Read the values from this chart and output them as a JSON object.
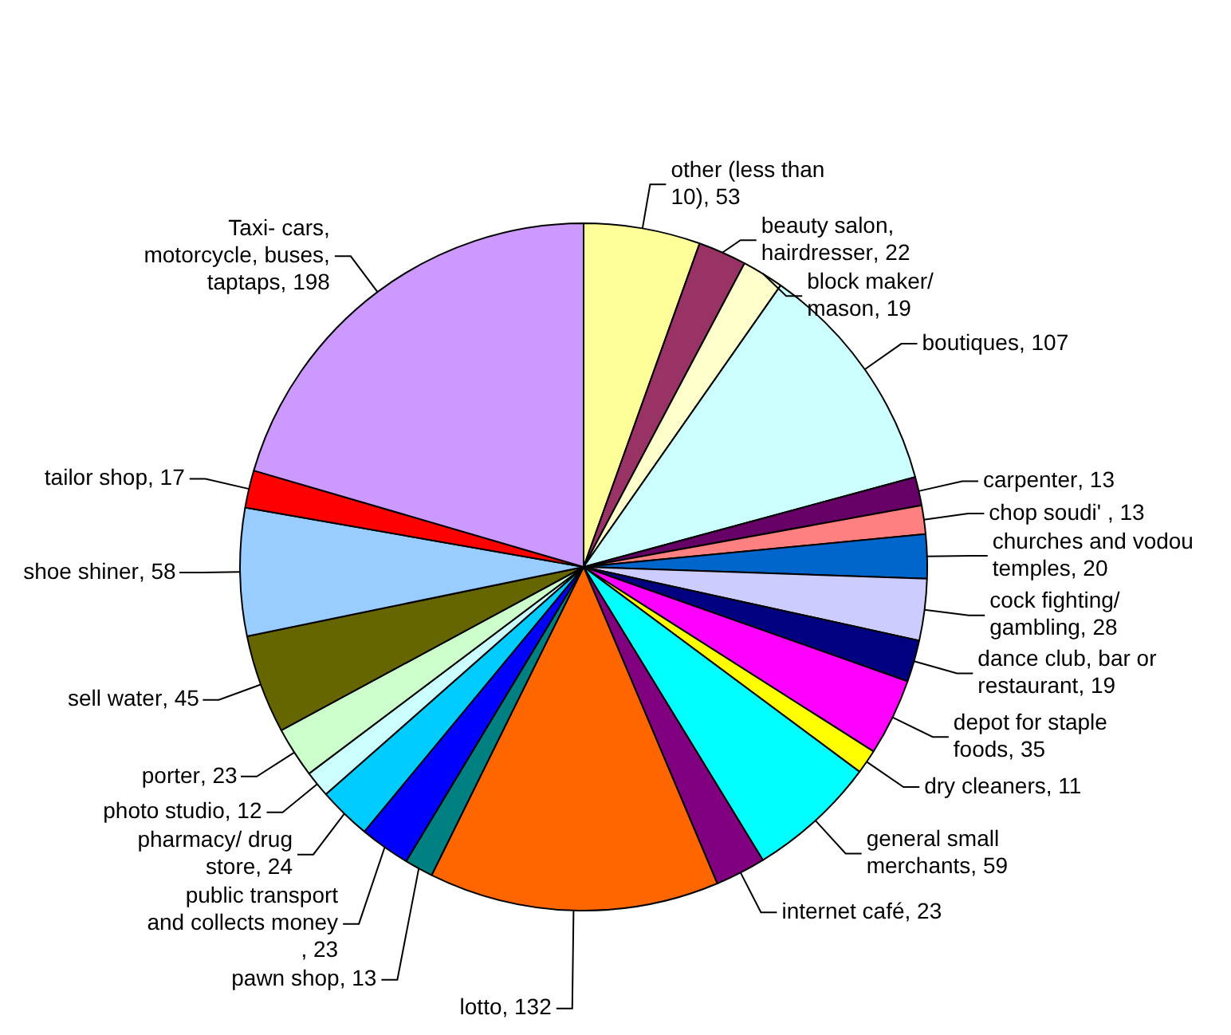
{
  "chart_data": {
    "type": "pie",
    "categories": [
      "other (less than 10)",
      "beauty salon, hairdresser",
      "block maker/ mason",
      "boutiques",
      "carpenter",
      "chop soudi' ",
      "churches and vodou temples",
      "cock fighting/ gambling",
      "dance club, bar or restaurant",
      "depot for staple foods",
      "dry cleaners",
      "general small merchants",
      "internet café",
      "lotto",
      "pawn shop",
      "public transport and collects money ",
      "pharmacy/ drug store",
      "photo studio",
      "porter",
      "sell water",
      "shoe shiner",
      "tailor shop",
      "Taxi- cars, motorcycle, buses, taptaps"
    ],
    "values": [
      53,
      22,
      19,
      107,
      13,
      13,
      20,
      28,
      19,
      35,
      11,
      59,
      23,
      132,
      13,
      23,
      24,
      12,
      23,
      45,
      58,
      17,
      198
    ],
    "colors": [
      "#ffff99",
      "#993366",
      "#ffffcc",
      "#ccffff",
      "#660066",
      "#ff8080",
      "#0066cc",
      "#ccccff",
      "#000080",
      "#ff00ff",
      "#ffff00",
      "#00ffff",
      "#800080",
      "#ff6600",
      "#008080",
      "#0000ff",
      "#00ccff",
      "#ccffff",
      "#ccffcc",
      "#666600",
      "#99ccff",
      "#ff0000",
      "#cc99ff"
    ],
    "value_labels": [
      ", 53",
      ", 22",
      ", 19",
      ", 107",
      ", 13",
      ", 13",
      ", 20",
      ", 28",
      ", 19",
      ", 35",
      ", 11",
      ", 59",
      ", 23",
      ", 132",
      ", 13",
      ", 23",
      ", 24",
      ", 12",
      ", 23",
      ", 45",
      ", 58",
      ", 17",
      ", 198"
    ],
    "legend": false
  }
}
